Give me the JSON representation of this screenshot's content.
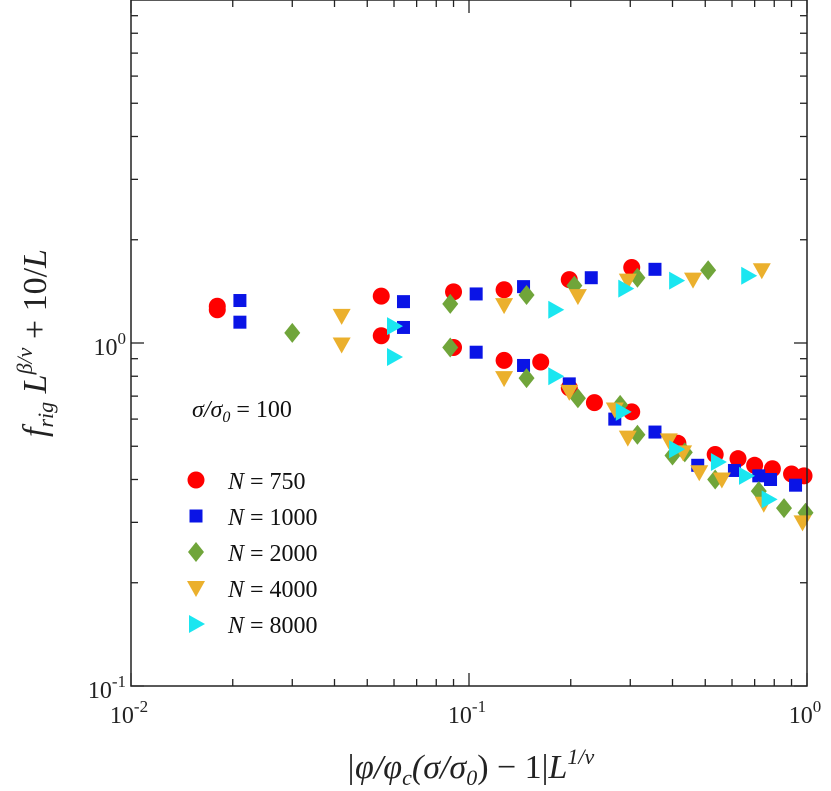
{
  "chart_data": {
    "type": "scatter",
    "title": "",
    "xlabel": "|φ/φ_c(σ/σ_0) − 1|L^{1/ν}",
    "ylabel": "f_rig L^{β/ν} + 10/L",
    "xscale": "log",
    "yscale": "log",
    "xlim": [
      0.01,
      1
    ],
    "ylim": [
      0.1,
      10
    ],
    "x_ticks": [
      {
        "value": 0.01,
        "base": "10",
        "exp": "-2"
      },
      {
        "value": 0.1,
        "base": "10",
        "exp": "-1"
      },
      {
        "value": 1,
        "base": "10",
        "exp": "0"
      }
    ],
    "y_ticks": [
      {
        "value": 0.1,
        "base": "10",
        "exp": "-1"
      },
      {
        "value": 1,
        "base": "10",
        "exp": "0"
      }
    ],
    "grid": false,
    "legend_position": "lower-left",
    "annotation": {
      "lhs": "σ/σ",
      "sub": "0",
      "rhs": " = 100"
    },
    "series": [
      {
        "name": "N = 750",
        "legend_lhs": "N",
        "legend_rhs": " = 750",
        "marker": "circle",
        "color": "#ff0000",
        "points": [
          [
            0.018,
            1.25
          ],
          [
            0.018,
            1.28
          ],
          [
            0.055,
            1.37
          ],
          [
            0.09,
            1.41
          ],
          [
            0.127,
            1.43
          ],
          [
            0.198,
            1.53
          ],
          [
            0.303,
            1.66
          ],
          [
            0.055,
            1.05
          ],
          [
            0.09,
            0.97
          ],
          [
            0.127,
            0.89
          ],
          [
            0.163,
            0.88
          ],
          [
            0.198,
            0.74
          ],
          [
            0.235,
            0.67
          ],
          [
            0.303,
            0.63
          ],
          [
            0.415,
            0.51
          ],
          [
            0.535,
            0.473
          ],
          [
            0.625,
            0.46
          ],
          [
            0.7,
            0.44
          ],
          [
            0.79,
            0.43
          ],
          [
            0.9,
            0.415
          ],
          [
            0.98,
            0.41
          ]
        ]
      },
      {
        "name": "N = 1000",
        "legend_lhs": "N",
        "legend_rhs": " = 1000",
        "marker": "square",
        "color": "#0a14e6",
        "points": [
          [
            0.021,
            1.33
          ],
          [
            0.021,
            1.15
          ],
          [
            0.064,
            1.32
          ],
          [
            0.064,
            1.11
          ],
          [
            0.105,
            1.39
          ],
          [
            0.145,
            1.46
          ],
          [
            0.23,
            1.55
          ],
          [
            0.355,
            1.64
          ],
          [
            0.105,
            0.94
          ],
          [
            0.145,
            0.86
          ],
          [
            0.198,
            0.76
          ],
          [
            0.27,
            0.6
          ],
          [
            0.355,
            0.55
          ],
          [
            0.475,
            0.44
          ],
          [
            0.61,
            0.425
          ],
          [
            0.72,
            0.41
          ],
          [
            0.78,
            0.4
          ],
          [
            0.925,
            0.385
          ]
        ]
      },
      {
        "name": "N = 2000",
        "legend_lhs": "N",
        "legend_rhs": " = 2000",
        "marker": "diamond",
        "color": "#70a53a",
        "points": [
          [
            0.03,
            1.07
          ],
          [
            0.088,
            1.3
          ],
          [
            0.148,
            1.38
          ],
          [
            0.205,
            1.47
          ],
          [
            0.315,
            1.55
          ],
          [
            0.51,
            1.63
          ],
          [
            0.088,
            0.97
          ],
          [
            0.148,
            0.79
          ],
          [
            0.21,
            0.69
          ],
          [
            0.315,
            0.54
          ],
          [
            0.435,
            0.48
          ],
          [
            0.28,
            0.66
          ],
          [
            0.4,
            0.47
          ],
          [
            0.535,
            0.4
          ],
          [
            0.72,
            0.37
          ],
          [
            0.855,
            0.33
          ],
          [
            0.99,
            0.32
          ]
        ]
      },
      {
        "name": "N = 4000",
        "legend_lhs": "N",
        "legend_rhs": " = 4000",
        "marker": "triangle-down",
        "color": "#ebb02d",
        "points": [
          [
            0.042,
            1.2
          ],
          [
            0.042,
            0.99
          ],
          [
            0.127,
            1.29
          ],
          [
            0.21,
            1.37
          ],
          [
            0.295,
            1.52
          ],
          [
            0.46,
            1.53
          ],
          [
            0.735,
            1.63
          ],
          [
            0.127,
            0.79
          ],
          [
            0.198,
            0.72
          ],
          [
            0.27,
            0.64
          ],
          [
            0.295,
            0.53
          ],
          [
            0.39,
            0.52
          ],
          [
            0.48,
            0.42
          ],
          [
            0.56,
            0.4
          ],
          [
            0.745,
            0.34
          ],
          [
            0.97,
            0.3
          ],
          [
            0.43,
            0.48
          ]
        ]
      },
      {
        "name": "N = 8000",
        "legend_lhs": "N",
        "legend_rhs": " = 8000",
        "marker": "triangle-right",
        "color": "#1ae6f0",
        "points": [
          [
            0.06,
            1.12
          ],
          [
            0.06,
            0.91
          ],
          [
            0.18,
            1.25
          ],
          [
            0.29,
            1.44
          ],
          [
            0.41,
            1.52
          ],
          [
            0.67,
            1.57
          ],
          [
            0.18,
            0.8
          ],
          [
            0.285,
            0.63
          ],
          [
            0.41,
            0.49
          ],
          [
            0.545,
            0.45
          ],
          [
            0.66,
            0.41
          ],
          [
            0.77,
            0.35
          ]
        ]
      }
    ]
  }
}
